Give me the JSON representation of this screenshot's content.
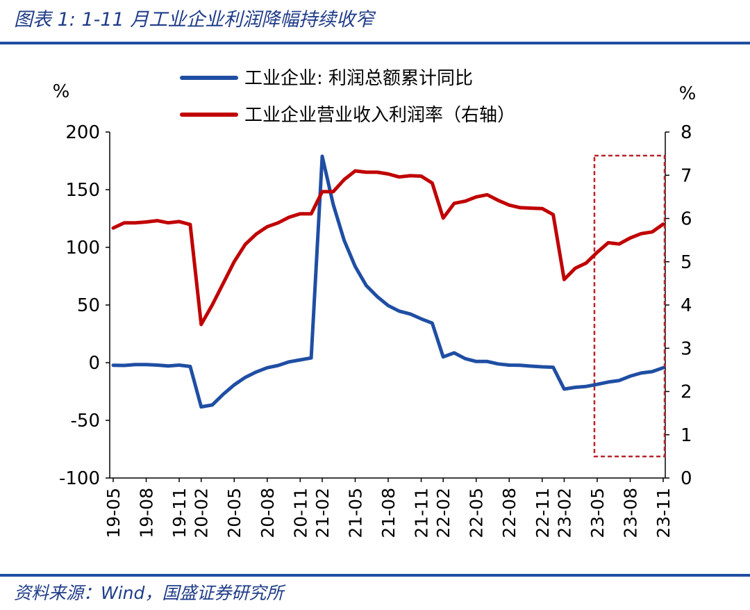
{
  "title": "图表 1:  1-11 月工业企业利润降幅持续收窄",
  "source": "资料来源：Wind，国盛证券研究所",
  "chart_data": {
    "type": "line",
    "left_unit": "%",
    "right_unit": "%",
    "left_ylim": [
      -100,
      200
    ],
    "left_ticks": [
      200,
      150,
      100,
      50,
      0,
      -50,
      -100
    ],
    "right_ylim": [
      0,
      8
    ],
    "right_ticks": [
      8,
      7,
      6,
      5,
      4,
      3,
      2,
      1,
      0
    ],
    "x_tick_labels": [
      "19-05",
      "19-08",
      "19-11",
      "20-02",
      "20-05",
      "20-08",
      "20-11",
      "21-02",
      "21-05",
      "21-08",
      "21-11",
      "22-02",
      "22-05",
      "22-08",
      "22-11",
      "23-02",
      "23-05",
      "23-08",
      "23-11"
    ],
    "x_months": [
      "19-05",
      "19-06",
      "19-07",
      "19-08",
      "19-09",
      "19-10",
      "19-11",
      "19-12",
      "20-02",
      "20-03",
      "20-04",
      "20-05",
      "20-06",
      "20-07",
      "20-08",
      "20-09",
      "20-10",
      "20-11",
      "20-12",
      "21-02",
      "21-03",
      "21-04",
      "21-05",
      "21-06",
      "21-07",
      "21-08",
      "21-09",
      "21-10",
      "21-11",
      "21-12",
      "22-02",
      "22-03",
      "22-04",
      "22-05",
      "22-06",
      "22-07",
      "22-08",
      "22-09",
      "22-10",
      "22-11",
      "22-12",
      "23-02",
      "23-03",
      "23-04",
      "23-05",
      "23-06",
      "23-07",
      "23-08",
      "23-09",
      "23-10",
      "23-11"
    ],
    "series": [
      {
        "name": "工业企业: 利润总额累计同比",
        "axis": "left",
        "color": "#1f4ea3",
        "values": [
          -2.3,
          -2.4,
          -1.7,
          -1.7,
          -2.1,
          -2.9,
          -2.1,
          -3.3,
          -38.3,
          -36.7,
          -27.4,
          -19.3,
          -12.8,
          -8.1,
          -4.4,
          -2.4,
          0.7,
          2.4,
          4.1,
          178.9,
          137.3,
          106.0,
          83.4,
          66.9,
          57.3,
          49.5,
          44.7,
          42.2,
          38.0,
          34.3,
          5.0,
          8.5,
          3.5,
          1.0,
          1.0,
          -1.1,
          -2.1,
          -2.3,
          -3.0,
          -3.6,
          -4.0,
          -22.9,
          -21.4,
          -20.6,
          -18.8,
          -16.8,
          -15.5,
          -11.7,
          -9.0,
          -7.8,
          -4.4
        ]
      },
      {
        "name": "工业企业营业收入利润率（右轴）",
        "axis": "right",
        "color": "#c00000",
        "values": [
          5.78,
          5.9,
          5.9,
          5.92,
          5.95,
          5.9,
          5.93,
          5.86,
          3.55,
          4.0,
          4.5,
          5.0,
          5.4,
          5.64,
          5.81,
          5.9,
          6.03,
          6.11,
          6.11,
          6.62,
          6.62,
          6.9,
          7.1,
          7.07,
          7.07,
          7.03,
          6.96,
          6.99,
          6.98,
          6.82,
          6.01,
          6.35,
          6.4,
          6.5,
          6.55,
          6.42,
          6.31,
          6.25,
          6.24,
          6.23,
          6.09,
          4.59,
          4.85,
          4.97,
          5.22,
          5.44,
          5.41,
          5.55,
          5.65,
          5.69,
          5.87
        ]
      }
    ],
    "highlight_box": {
      "x_from": "23-05",
      "x_to": "23-11",
      "style": "dashed",
      "color": "#b8242a"
    }
  }
}
